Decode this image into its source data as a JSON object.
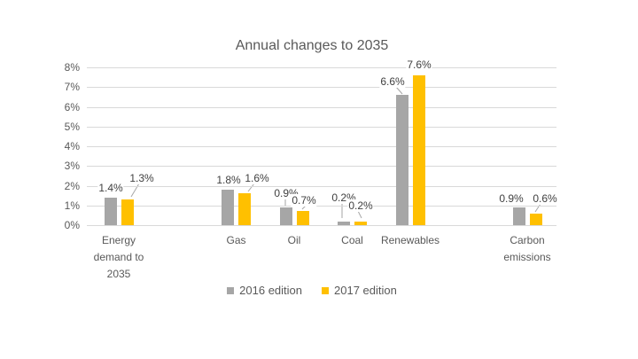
{
  "chart_data": {
    "type": "bar",
    "title": "Annual changes to 2035",
    "categories": [
      "Energy demand to 2035",
      "Gas",
      "Oil",
      "Coal",
      "Renewables",
      "Carbon emissions"
    ],
    "series": [
      {
        "name": "2016 edition",
        "color": "#a6a6a6",
        "values": [
          1.4,
          1.8,
          0.9,
          0.2,
          6.6,
          0.9
        ]
      },
      {
        "name": "2017 edition",
        "color": "#ffc000",
        "values": [
          1.3,
          1.6,
          0.7,
          0.2,
          7.6,
          0.6
        ]
      }
    ],
    "data_labels": [
      [
        "1.4%",
        "1.8%",
        "0.9%",
        "0.2%",
        "6.6%",
        "0.9%"
      ],
      [
        "1.3%",
        "1.6%",
        "0.7%",
        "0.2%",
        "7.6%",
        "0.6%"
      ]
    ],
    "y_axis": {
      "ticks": [
        "0%",
        "1%",
        "2%",
        "3%",
        "4%",
        "5%",
        "6%",
        "7%",
        "8%"
      ],
      "min": 0,
      "max": 8,
      "step": 1,
      "suffix": "%"
    },
    "x_axis": {
      "slots": 8,
      "category_slots": [
        0,
        2,
        3,
        4,
        5,
        7
      ]
    },
    "legend": {
      "position": "bottom",
      "entries": [
        "2016 edition",
        "2017 edition"
      ]
    },
    "grid": true,
    "ylim": [
      0,
      8
    ]
  },
  "colors": {
    "bar_2016": "#a6a6a6",
    "bar_2017": "#ffc000",
    "gridline": "#d9d9d9",
    "axis_text": "#595959",
    "data_label_text": "#404040",
    "leader_line": "#a6a6a6",
    "background": "#ffffff"
  }
}
